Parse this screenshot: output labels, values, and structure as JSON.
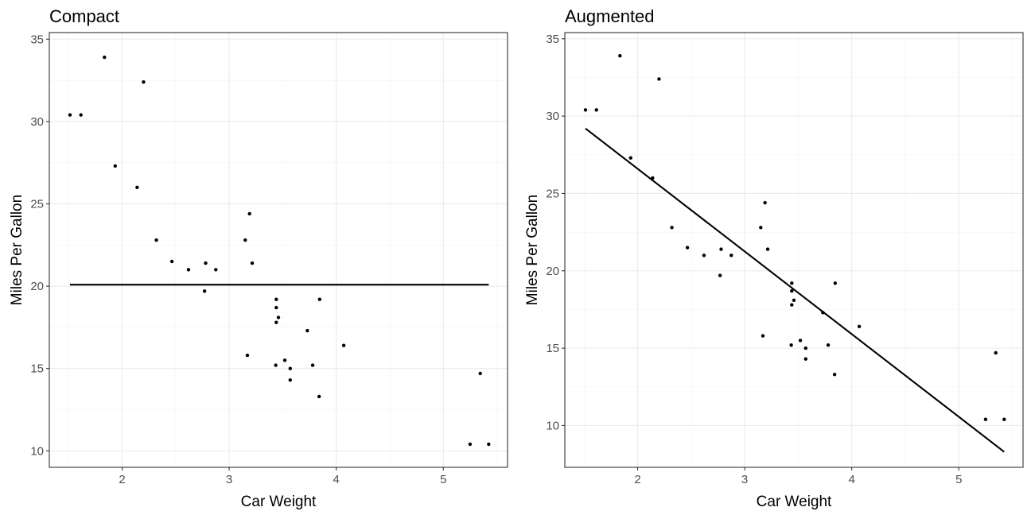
{
  "chart_data": [
    {
      "type": "scatter",
      "title": "Compact",
      "xlabel": "Car Weight",
      "ylabel": "Miles Per Gallon",
      "xlim": [
        1.32,
        5.6
      ],
      "ylim": [
        9.0,
        35.4
      ],
      "xticks": [
        2,
        3,
        4,
        5
      ],
      "yticks": [
        10,
        15,
        20,
        25,
        30,
        35
      ],
      "grid": true,
      "points": [
        {
          "x": 2.62,
          "y": 21.0
        },
        {
          "x": 2.875,
          "y": 21.0
        },
        {
          "x": 2.32,
          "y": 22.8
        },
        {
          "x": 3.215,
          "y": 21.4
        },
        {
          "x": 3.44,
          "y": 18.7
        },
        {
          "x": 3.46,
          "y": 18.1
        },
        {
          "x": 3.57,
          "y": 14.3
        },
        {
          "x": 3.19,
          "y": 24.4
        },
        {
          "x": 3.15,
          "y": 22.8
        },
        {
          "x": 3.44,
          "y": 19.2
        },
        {
          "x": 3.44,
          "y": 17.8
        },
        {
          "x": 4.07,
          "y": 16.4
        },
        {
          "x": 3.73,
          "y": 17.3
        },
        {
          "x": 3.78,
          "y": 15.2
        },
        {
          "x": 5.25,
          "y": 10.4
        },
        {
          "x": 5.424,
          "y": 10.4
        },
        {
          "x": 5.345,
          "y": 14.7
        },
        {
          "x": 2.2,
          "y": 32.4
        },
        {
          "x": 1.615,
          "y": 30.4
        },
        {
          "x": 1.835,
          "y": 33.9
        },
        {
          "x": 2.465,
          "y": 21.5
        },
        {
          "x": 3.52,
          "y": 15.5
        },
        {
          "x": 3.435,
          "y": 15.2
        },
        {
          "x": 3.84,
          "y": 13.3
        },
        {
          "x": 3.845,
          "y": 19.2
        },
        {
          "x": 1.935,
          "y": 27.3
        },
        {
          "x": 2.14,
          "y": 26.0
        },
        {
          "x": 1.513,
          "y": 30.4
        },
        {
          "x": 3.17,
          "y": 15.8
        },
        {
          "x": 2.77,
          "y": 19.7
        },
        {
          "x": 3.57,
          "y": 15.0
        },
        {
          "x": 2.78,
          "y": 21.4
        }
      ],
      "line": {
        "x": [
          1.513,
          5.424
        ],
        "y": [
          20.09,
          20.09
        ]
      }
    },
    {
      "type": "scatter",
      "title": "Augmented",
      "xlabel": "Car Weight",
      "ylabel": "Miles Per Gallon",
      "xlim": [
        1.32,
        5.6
      ],
      "ylim": [
        7.3,
        35.4
      ],
      "xticks": [
        2,
        3,
        4,
        5
      ],
      "yticks": [
        10,
        15,
        20,
        25,
        30,
        35
      ],
      "grid": true,
      "points": [
        {
          "x": 2.62,
          "y": 21.0
        },
        {
          "x": 2.875,
          "y": 21.0
        },
        {
          "x": 2.32,
          "y": 22.8
        },
        {
          "x": 3.215,
          "y": 21.4
        },
        {
          "x": 3.44,
          "y": 18.7
        },
        {
          "x": 3.46,
          "y": 18.1
        },
        {
          "x": 3.57,
          "y": 14.3
        },
        {
          "x": 3.19,
          "y": 24.4
        },
        {
          "x": 3.15,
          "y": 22.8
        },
        {
          "x": 3.44,
          "y": 19.2
        },
        {
          "x": 3.44,
          "y": 17.8
        },
        {
          "x": 4.07,
          "y": 16.4
        },
        {
          "x": 3.73,
          "y": 17.3
        },
        {
          "x": 3.78,
          "y": 15.2
        },
        {
          "x": 5.25,
          "y": 10.4
        },
        {
          "x": 5.424,
          "y": 10.4
        },
        {
          "x": 5.345,
          "y": 14.7
        },
        {
          "x": 2.2,
          "y": 32.4
        },
        {
          "x": 1.615,
          "y": 30.4
        },
        {
          "x": 1.835,
          "y": 33.9
        },
        {
          "x": 2.465,
          "y": 21.5
        },
        {
          "x": 3.52,
          "y": 15.5
        },
        {
          "x": 3.435,
          "y": 15.2
        },
        {
          "x": 3.84,
          "y": 13.3
        },
        {
          "x": 3.845,
          "y": 19.2
        },
        {
          "x": 1.935,
          "y": 27.3
        },
        {
          "x": 2.14,
          "y": 26.0
        },
        {
          "x": 1.513,
          "y": 30.4
        },
        {
          "x": 3.17,
          "y": 15.8
        },
        {
          "x": 2.77,
          "y": 19.7
        },
        {
          "x": 3.57,
          "y": 15.0
        },
        {
          "x": 2.78,
          "y": 21.4
        }
      ],
      "line": {
        "x": [
          1.513,
          5.424
        ],
        "y": [
          29.2,
          8.3
        ]
      }
    }
  ]
}
